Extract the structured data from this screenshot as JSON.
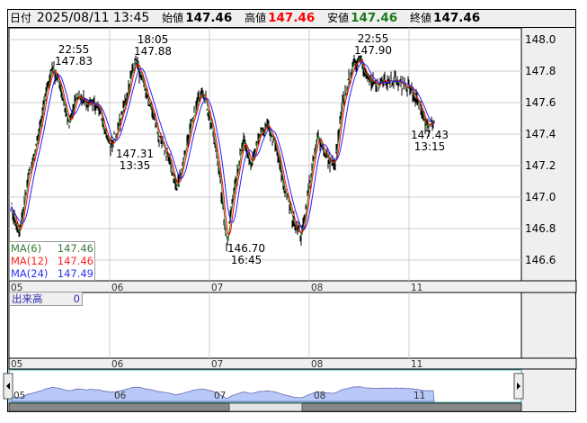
{
  "header": {
    "date_label": "日付",
    "datetime": "2025/08/11 13:45",
    "open_label": "始値",
    "open": "147.46",
    "high_label": "高値",
    "high": "147.46",
    "low_label": "安値",
    "low": "147.46",
    "close_label": "終値",
    "close": "147.46"
  },
  "legend": [
    {
      "name": "MA(6)",
      "value": "147.46",
      "color": "#3a7a3a"
    },
    {
      "name": "MA(12)",
      "value": "147.46",
      "color": "#ff2020"
    },
    {
      "name": "MA(24)",
      "value": "147.49",
      "color": "#3030ff"
    }
  ],
  "volume": {
    "label": "出来高",
    "value": "0"
  },
  "chart_data": {
    "type": "candlestick",
    "yticks": [
      "148.0",
      "147.8",
      "147.6",
      "147.4",
      "147.2",
      "147.0",
      "146.8",
      "146.6"
    ],
    "ylim": [
      146.52,
      148.08
    ],
    "xticks": [
      "05",
      "06",
      "07",
      "08",
      "11"
    ],
    "close_path": [
      146.95,
      146.75,
      147.1,
      147.3,
      147.6,
      147.83,
      147.7,
      147.45,
      147.65,
      147.6,
      147.6,
      147.5,
      147.31,
      147.45,
      147.65,
      147.88,
      147.7,
      147.55,
      147.35,
      147.25,
      147.05,
      147.3,
      147.5,
      147.7,
      147.5,
      147.2,
      146.7,
      147.1,
      147.35,
      147.2,
      147.4,
      147.45,
      147.3,
      147.05,
      146.85,
      146.75,
      147.1,
      147.4,
      147.25,
      147.2,
      147.6,
      147.8,
      147.9,
      147.75,
      147.7,
      147.75,
      147.75,
      147.72,
      147.7,
      147.6,
      147.45,
      147.46
    ],
    "annotations": [
      {
        "time": "22:55",
        "price": "147.83"
      },
      {
        "time": "18:05",
        "price": "147.88"
      },
      {
        "time": "13:35",
        "price": "147.31"
      },
      {
        "time": "16:45",
        "price": "146.70"
      },
      {
        "time": "22:55",
        "price": "147.90"
      },
      {
        "time": "13:15",
        "price": "147.43"
      }
    ],
    "grid": true
  },
  "colors": {
    "candle": "#000000",
    "ma6": "#2a8a2a",
    "ma12": "#ff0000",
    "ma24": "#2020ff",
    "navigator": "#b8c8f8"
  }
}
